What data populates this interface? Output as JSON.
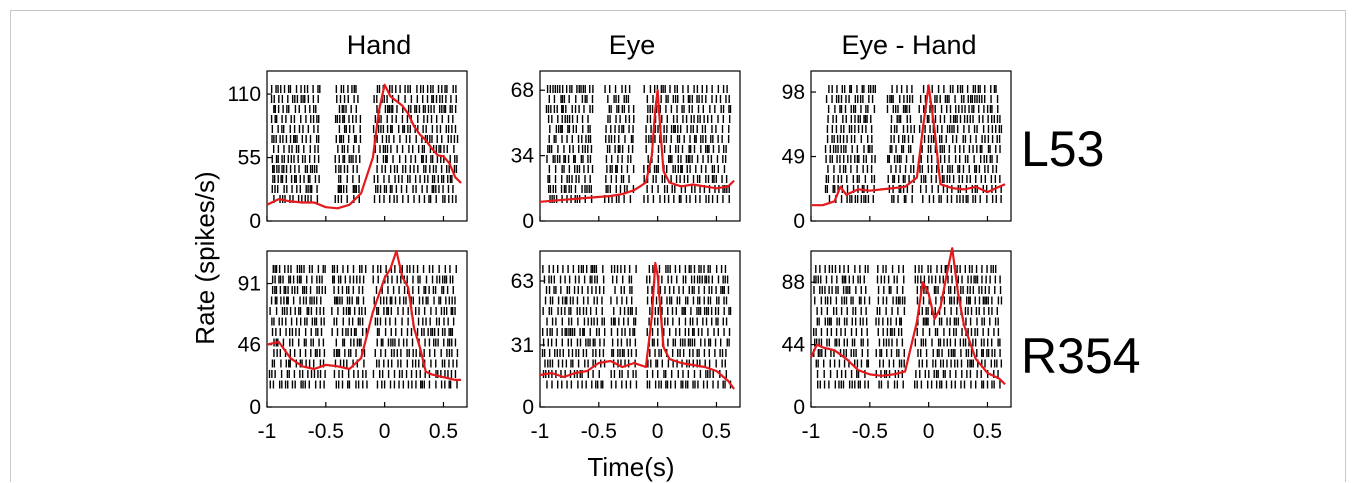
{
  "figure": {
    "column_titles": [
      "Hand",
      "Eye",
      "Eye - Hand"
    ],
    "row_labels": [
      "L53",
      "R354"
    ],
    "ylabel": "Rate (spikes/s)",
    "xlabel": "Time(s)"
  },
  "chart_data": [
    {
      "type": "line",
      "title": "Hand",
      "row_label": "L53",
      "series": [
        {
          "name": "",
          "color": "#e41a1c",
          "x": [
            -1,
            -0.9,
            -0.8,
            -0.7,
            -0.6,
            -0.5,
            -0.4,
            -0.3,
            -0.2,
            -0.1,
            -0.05,
            0,
            0.05,
            0.1,
            0.15,
            0.2,
            0.25,
            0.3,
            0.35,
            0.4,
            0.45,
            0.5,
            0.55,
            0.6,
            0.65
          ],
          "y": [
            14,
            19,
            17,
            16,
            16,
            12,
            11,
            14,
            24,
            55,
            95,
            118,
            108,
            104,
            100,
            93,
            82,
            75,
            70,
            63,
            57,
            56,
            50,
            38,
            33
          ]
        }
      ],
      "raster_spans": [
        [
          -0.98,
          -0.55
        ],
        [
          -0.42,
          -0.2
        ],
        [
          -0.1,
          0.62
        ]
      ],
      "yticks": [
        0,
        55,
        110
      ],
      "ylim": [
        0,
        130
      ],
      "xlim": [
        -1,
        0.7
      ]
    },
    {
      "type": "line",
      "title": "Eye",
      "row_label": "L53",
      "series": [
        {
          "name": "",
          "color": "#e41a1c",
          "x": [
            -1,
            -0.8,
            -0.6,
            -0.4,
            -0.3,
            -0.2,
            -0.15,
            -0.1,
            -0.05,
            -0.02,
            0,
            0.02,
            0.05,
            0.1,
            0.2,
            0.3,
            0.4,
            0.5,
            0.6,
            0.65
          ],
          "y": [
            10,
            11,
            12,
            13,
            14,
            16,
            18,
            20,
            34,
            58,
            68,
            50,
            26,
            20,
            18,
            19,
            18,
            17,
            18,
            21
          ]
        }
      ],
      "raster_spans": [
        [
          -0.95,
          -0.55
        ],
        [
          -0.45,
          -0.2
        ],
        [
          -0.12,
          0.62
        ]
      ],
      "yticks": [
        0,
        34,
        68
      ],
      "ylim": [
        0,
        78
      ],
      "xlim": [
        -1,
        0.7
      ]
    },
    {
      "type": "line",
      "title": "Eye - Hand",
      "row_label": "L53",
      "series": [
        {
          "name": "",
          "color": "#e41a1c",
          "x": [
            -1,
            -0.9,
            -0.8,
            -0.75,
            -0.7,
            -0.6,
            -0.5,
            -0.4,
            -0.3,
            -0.2,
            -0.1,
            -0.05,
            0,
            0.05,
            0.1,
            0.2,
            0.3,
            0.4,
            0.5,
            0.6,
            0.65
          ],
          "y": [
            12,
            12,
            15,
            26,
            20,
            24,
            23,
            24,
            25,
            26,
            33,
            70,
            103,
            70,
            28,
            25,
            24,
            26,
            22,
            26,
            28
          ]
        }
      ],
      "raster_spans": [
        [
          -0.88,
          -0.45
        ],
        [
          -0.35,
          -0.12
        ],
        [
          -0.08,
          0.62
        ]
      ],
      "yticks": [
        0,
        49,
        98
      ],
      "ylim": [
        0,
        114
      ],
      "xlim": [
        -1,
        0.7
      ]
    },
    {
      "type": "line",
      "title": "Hand",
      "row_label": "R354",
      "series": [
        {
          "name": "",
          "color": "#e41a1c",
          "x": [
            -1,
            -0.9,
            -0.8,
            -0.7,
            -0.6,
            -0.5,
            -0.4,
            -0.3,
            -0.2,
            -0.1,
            0,
            0.05,
            0.1,
            0.15,
            0.2,
            0.25,
            0.3,
            0.35,
            0.4,
            0.5,
            0.6,
            0.65
          ],
          "y": [
            46,
            48,
            36,
            30,
            28,
            31,
            30,
            28,
            36,
            70,
            95,
            102,
            115,
            96,
            88,
            58,
            44,
            26,
            24,
            22,
            20,
            20
          ]
        }
      ],
      "raster_spans": [
        [
          -0.98,
          -0.5
        ],
        [
          -0.45,
          -0.15
        ],
        [
          -0.1,
          0.62
        ]
      ],
      "yticks": [
        0,
        46,
        91
      ],
      "ylim": [
        0,
        115
      ],
      "xlim": [
        -1,
        0.7
      ]
    },
    {
      "type": "line",
      "title": "Eye",
      "row_label": "R354",
      "series": [
        {
          "name": "",
          "color": "#e41a1c",
          "x": [
            -1,
            -0.9,
            -0.8,
            -0.7,
            -0.6,
            -0.5,
            -0.4,
            -0.3,
            -0.2,
            -0.1,
            -0.05,
            -0.02,
            0,
            0.05,
            0.1,
            0.2,
            0.3,
            0.4,
            0.5,
            0.6,
            0.65
          ],
          "y": [
            16,
            17,
            15,
            17,
            18,
            22,
            23,
            20,
            22,
            20,
            45,
            72,
            66,
            30,
            24,
            22,
            21,
            20,
            18,
            13,
            9
          ]
        }
      ],
      "raster_spans": [
        [
          -0.98,
          -0.45
        ],
        [
          -0.4,
          -0.18
        ],
        [
          -0.1,
          0.62
        ]
      ],
      "yticks": [
        0,
        31,
        63
      ],
      "ylim": [
        0,
        78
      ],
      "xlim": [
        -1,
        0.7
      ]
    },
    {
      "type": "line",
      "title": "Eye - Hand",
      "row_label": "R354",
      "series": [
        {
          "name": "",
          "color": "#e41a1c",
          "x": [
            -1,
            -0.95,
            -0.9,
            -0.8,
            -0.7,
            -0.6,
            -0.5,
            -0.4,
            -0.3,
            -0.2,
            -0.1,
            -0.05,
            0,
            0.05,
            0.1,
            0.15,
            0.2,
            0.25,
            0.3,
            0.4,
            0.5,
            0.6,
            0.65
          ],
          "y": [
            35,
            44,
            42,
            40,
            34,
            26,
            23,
            22,
            23,
            25,
            60,
            88,
            80,
            62,
            70,
            92,
            112,
            80,
            58,
            34,
            24,
            20,
            16
          ]
        }
      ],
      "raster_spans": [
        [
          -0.98,
          -0.5
        ],
        [
          -0.45,
          -0.2
        ],
        [
          -0.12,
          0.62
        ]
      ],
      "yticks": [
        0,
        44,
        88
      ],
      "ylim": [
        0,
        110
      ],
      "xlim": [
        -1,
        0.7
      ]
    }
  ],
  "xticks": [
    -1,
    -0.5,
    0,
    0.5
  ],
  "xtick_labels": [
    "-1",
    "-0.5",
    "0",
    "0.5"
  ],
  "colors": {
    "rate_line": "#e41a1c",
    "raster": "#000000",
    "axes": "#000000"
  }
}
